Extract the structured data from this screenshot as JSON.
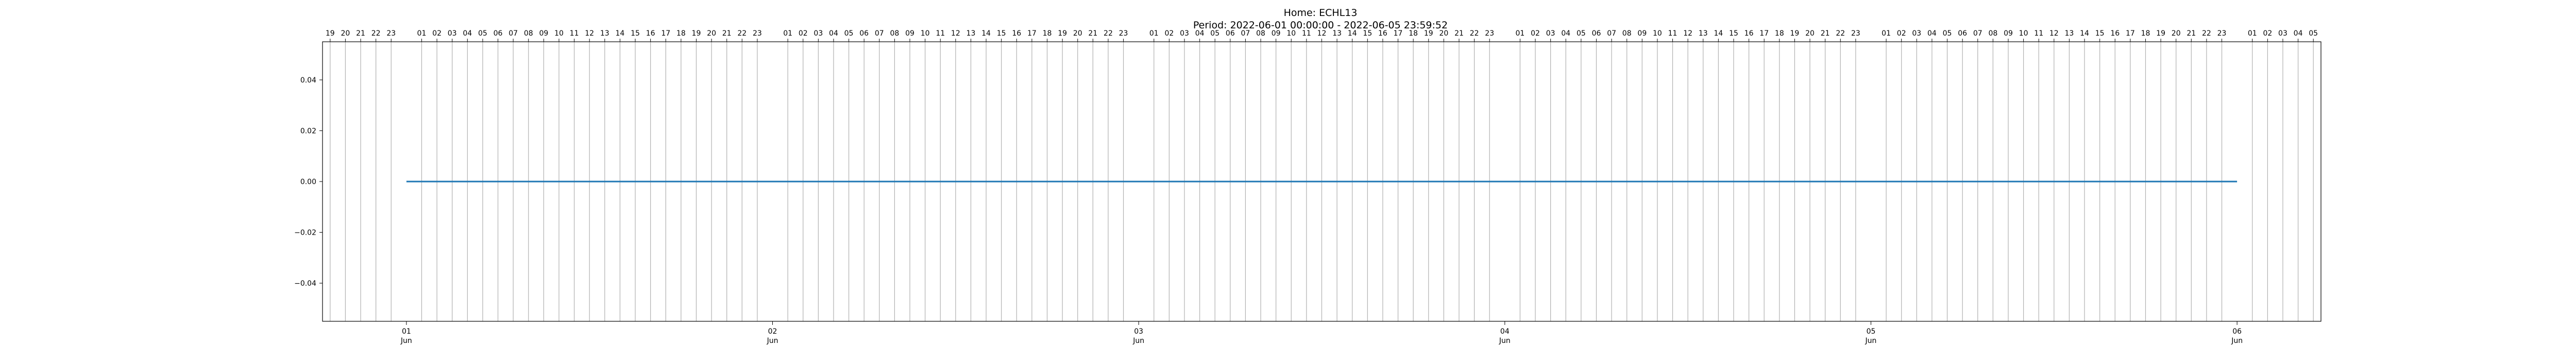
{
  "chart_data": {
    "type": "line",
    "title": "Home: ECHL13",
    "subtitle": "Period: 2022-06-01 00:00:00 - 2022-06-05 23:59:52",
    "xlabel": "",
    "ylabel": "",
    "xlim": [
      "2022-05-31 18:30",
      "2022-06-06 05:30"
    ],
    "ylim": [
      -0.055,
      0.055
    ],
    "yticks": [
      -0.04,
      -0.02,
      0.0,
      0.02,
      0.04
    ],
    "ytick_labels": [
      "−0.04",
      "−0.02",
      "0.00",
      "0.02",
      "0.04"
    ],
    "xticks_major": [
      {
        "x": "2022-06-01",
        "day": "01",
        "month": "Jun"
      },
      {
        "x": "2022-06-02",
        "day": "02",
        "month": "Jun"
      },
      {
        "x": "2022-06-03",
        "day": "03",
        "month": "Jun"
      },
      {
        "x": "2022-06-04",
        "day": "04",
        "month": "Jun"
      },
      {
        "x": "2022-06-05",
        "day": "05",
        "month": "Jun"
      },
      {
        "x": "2022-06-06",
        "day": "06",
        "month": "Jun"
      }
    ],
    "xticks_minor_hours": {
      "first": "2022-05-31 19:00",
      "last": "2022-06-06 05:00",
      "step_hours": 1,
      "label_format": "HH",
      "skip_midnight": true
    },
    "grid": {
      "x_minor": true,
      "y": false
    },
    "series": [
      {
        "color": "#1f77b4",
        "x": [
          "2022-06-01 00:00:00",
          "2022-06-05 23:59:52"
        ],
        "y": [
          0.0,
          0.0
        ]
      }
    ]
  }
}
